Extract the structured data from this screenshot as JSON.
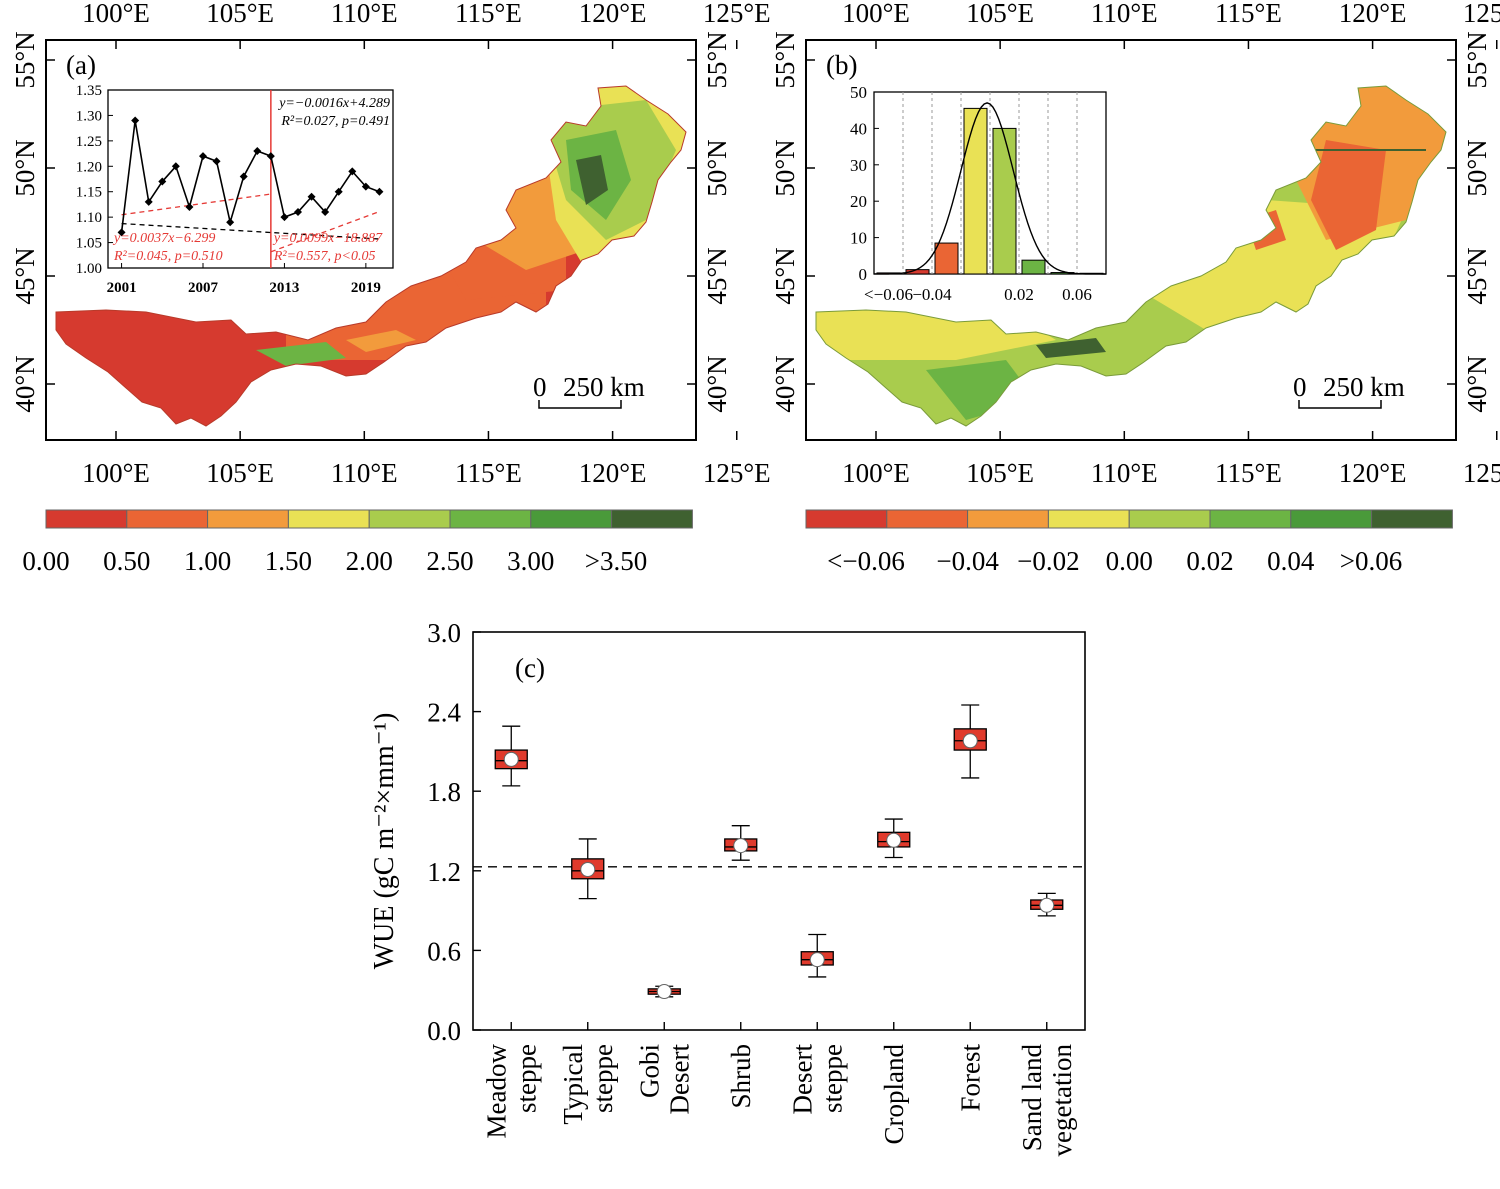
{
  "panel_a": {
    "label": "(a)",
    "lon_ticks": [
      "100°E",
      "105°E",
      "110°E",
      "115°E",
      "120°E",
      "125°E"
    ],
    "lat_ticks": [
      "55°N",
      "50°N",
      "45°N",
      "40°N"
    ],
    "scale_bar": {
      "zero": "0",
      "text": "250 km"
    },
    "colorbar": {
      "labels": [
        "0.00",
        "0.50",
        "1.00",
        "1.50",
        "2.00",
        "2.50",
        "3.00",
        ">3.50"
      ],
      "colors": [
        "#d63a2f",
        "#ea6534",
        "#f29b3c",
        "#e9e155",
        "#a9cc4d",
        "#6cb444",
        "#4a9a3a",
        "#3f6130"
      ]
    },
    "map_colors": {
      "low": "#d63a2f",
      "mid": "#ea6534",
      "orange": "#f29b3c",
      "yellow": "#e9e155",
      "lightgreen": "#a9cc4d",
      "green": "#6cb444",
      "darkgreen": "#3f6130"
    },
    "inset": {
      "x_ticks": [
        "2001",
        "2007",
        "2013",
        "2019"
      ],
      "y_ticks": [
        "1.35",
        "1.30",
        "1.25",
        "1.20",
        "1.15",
        "1.10",
        "1.05",
        "1.00"
      ],
      "eq_total": "y=−0.0016x+4.289",
      "stat_total": "R²=0.027, p=0.491",
      "eq_first": "y=0.0037x−6.299",
      "stat_first": "R²=0.045, p=0.510",
      "eq_second": "y=0.0099x−18.887",
      "stat_second": "R²=0.557, p<0.05"
    }
  },
  "panel_b": {
    "label": "(b)",
    "lon_ticks": [
      "100°E",
      "105°E",
      "110°E",
      "115°E",
      "120°E",
      "125°E"
    ],
    "lat_ticks": [
      "55°N",
      "50°N",
      "45°N",
      "40°N"
    ],
    "scale_bar": {
      "zero": "0",
      "text": "250 km"
    },
    "colorbar": {
      "labels": [
        "<−0.06",
        "−0.04",
        "−0.02",
        "0.00",
        "0.02",
        "0.04",
        ">0.06"
      ],
      "colors": [
        "#d63a2f",
        "#ea6534",
        "#f29b3c",
        "#e9e155",
        "#a9cc4d",
        "#6cb444",
        "#4a9a3a",
        "#3f6130"
      ]
    },
    "map_colors": {
      "red": "#ea6534",
      "orange": "#f29b3c",
      "yellow": "#e9e155",
      "lightgreen": "#a9cc4d",
      "green": "#6cb444",
      "darkgreen": "#3f6130"
    },
    "inset": {
      "x_ticks": [
        "<−0.06",
        "−0.04",
        "0.02",
        "0.06"
      ],
      "y_ticks": [
        "50",
        "40",
        "30",
        "20",
        "10",
        "0"
      ]
    }
  },
  "panel_c": {
    "label": "(c)",
    "ylabel": "WUE (gC m⁻²×mm⁻¹)",
    "y_ticks": [
      "3.0",
      "2.4",
      "1.8",
      "1.2",
      "0.6",
      "0.0"
    ],
    "categories": [
      [
        "Meadow",
        "steppe"
      ],
      [
        "Typical",
        "steppe"
      ],
      [
        "Gobi",
        "Desert"
      ],
      [
        "Shrub"
      ],
      [
        "Desert",
        "steppe"
      ],
      [
        "Cropland"
      ],
      [
        "Forest"
      ],
      [
        "Sand land",
        "vegetation"
      ]
    ],
    "box_color": "#e03a2c"
  },
  "chart_data": [
    {
      "type": "line",
      "panel": "(a) inset",
      "x": [
        2001,
        2002,
        2003,
        2004,
        2005,
        2006,
        2007,
        2008,
        2009,
        2010,
        2011,
        2012,
        2013,
        2014,
        2015,
        2016,
        2017,
        2018,
        2019,
        2020
      ],
      "series": [
        {
          "values": [
            1.07,
            1.29,
            1.13,
            1.17,
            1.2,
            1.12,
            1.22,
            1.21,
            1.09,
            1.18,
            1.23,
            1.22,
            1.1,
            1.11,
            1.14,
            1.11,
            1.15,
            1.19,
            1.16,
            1.15
          ]
        }
      ],
      "trend_lines": [
        {
          "equation": "y=−0.0016x+4.289",
          "range": [
            2001,
            2020
          ],
          "color": "#000000"
        },
        {
          "equation": "y=0.0037x−6.299",
          "range": [
            2001,
            2012
          ],
          "color": "#e53935"
        },
        {
          "equation": "y=0.0099x−18.887",
          "range": [
            2012,
            2020
          ],
          "color": "#e53935"
        }
      ],
      "breakpoint": 2012,
      "ylim": [
        1.0,
        1.35
      ],
      "xlim": [
        2000,
        2021
      ]
    },
    {
      "type": "bar",
      "panel": "(b) inset",
      "categories": [
        "<−0.06",
        "−0.06~−0.04",
        "−0.04~−0.02",
        "−0.02~0.00",
        "0.00~0.02",
        "0.02~0.04",
        "0.04~0.06",
        ">0.06"
      ],
      "values": [
        0.3,
        1.2,
        8.5,
        45.5,
        40.0,
        3.8,
        0.4,
        0.2
      ],
      "colors": [
        "#d63a2f",
        "#d63a2f",
        "#ea6534",
        "#e9e155",
        "#a9cc4d",
        "#6cb444",
        "#4a9a3a",
        "#3f6130"
      ],
      "ylim": [
        0,
        50
      ],
      "fit": "normal curve"
    },
    {
      "type": "box",
      "panel": "(c)",
      "categories": [
        "Meadow steppe",
        "Typical steppe",
        "Gobi Desert",
        "Shrub",
        "Desert steppe",
        "Cropland",
        "Forest",
        "Sand land vegetation"
      ],
      "boxes": [
        {
          "whisker_low": 1.84,
          "q1": 1.97,
          "median": 2.03,
          "q3": 2.11,
          "whisker_high": 2.29,
          "mean": 2.04
        },
        {
          "whisker_low": 0.99,
          "q1": 1.14,
          "median": 1.2,
          "q3": 1.29,
          "whisker_high": 1.44,
          "mean": 1.21
        },
        {
          "whisker_low": 0.25,
          "q1": 0.27,
          "median": 0.29,
          "q3": 0.31,
          "whisker_high": 0.33,
          "mean": 0.29
        },
        {
          "whisker_low": 1.28,
          "q1": 1.35,
          "median": 1.38,
          "q3": 1.44,
          "whisker_high": 1.54,
          "mean": 1.39
        },
        {
          "whisker_low": 0.4,
          "q1": 0.49,
          "median": 0.53,
          "q3": 0.59,
          "whisker_high": 0.72,
          "mean": 0.53
        },
        {
          "whisker_low": 1.3,
          "q1": 1.38,
          "median": 1.42,
          "q3": 1.49,
          "whisker_high": 1.59,
          "mean": 1.43
        },
        {
          "whisker_low": 1.9,
          "q1": 2.11,
          "median": 2.18,
          "q3": 2.27,
          "whisker_high": 2.45,
          "mean": 2.18
        },
        {
          "whisker_low": 0.86,
          "q1": 0.91,
          "median": 0.94,
          "q3": 0.98,
          "whisker_high": 1.03,
          "mean": 0.94
        }
      ],
      "reference_line": 1.23,
      "ylim": [
        0,
        3.0
      ]
    }
  ]
}
